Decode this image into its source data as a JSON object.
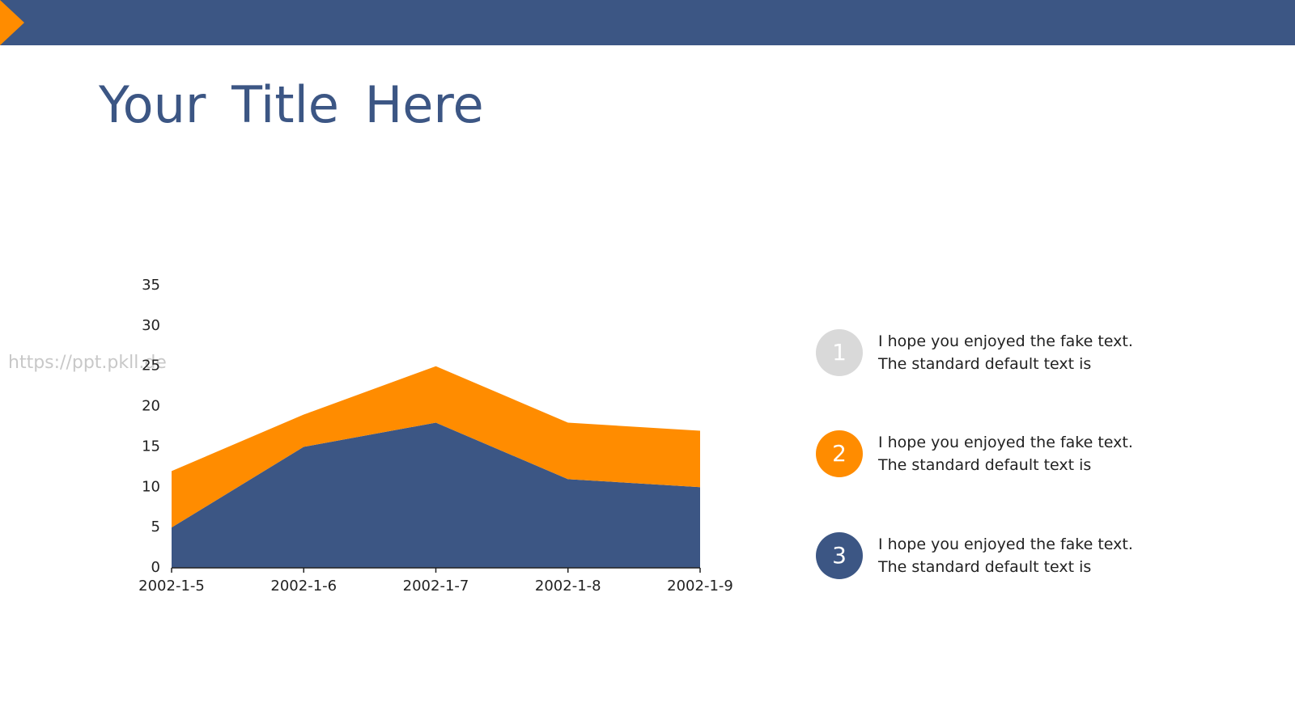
{
  "header": {
    "title": "Your Title Here"
  },
  "watermark": "https://ppt.pkll.de",
  "chart_data": {
    "type": "stacked-area",
    "categories": [
      "2002-1-5",
      "2002-1-6",
      "2002-1-7",
      "2002-1-8",
      "2002-1-9"
    ],
    "series": [
      {
        "color": "#3c5684",
        "values": [
          5,
          15,
          18,
          11,
          10
        ]
      },
      {
        "color": "#ff8c00",
        "values": [
          7,
          4,
          7,
          7,
          7
        ]
      }
    ],
    "ylim": [
      0,
      35
    ],
    "yticks": [
      0,
      5,
      10,
      15,
      20,
      25,
      30,
      35
    ],
    "grid": false
  },
  "items": [
    {
      "number": "1",
      "lines": [
        "I hope you enjoyed the fake text.",
        "The standard default text is"
      ]
    },
    {
      "number": "2",
      "lines": [
        "I hope you enjoyed the fake text.",
        "The standard default text is"
      ]
    },
    {
      "number": "3",
      "lines": [
        "I hope you enjoyed the fake text.",
        "The standard default text is"
      ]
    }
  ]
}
